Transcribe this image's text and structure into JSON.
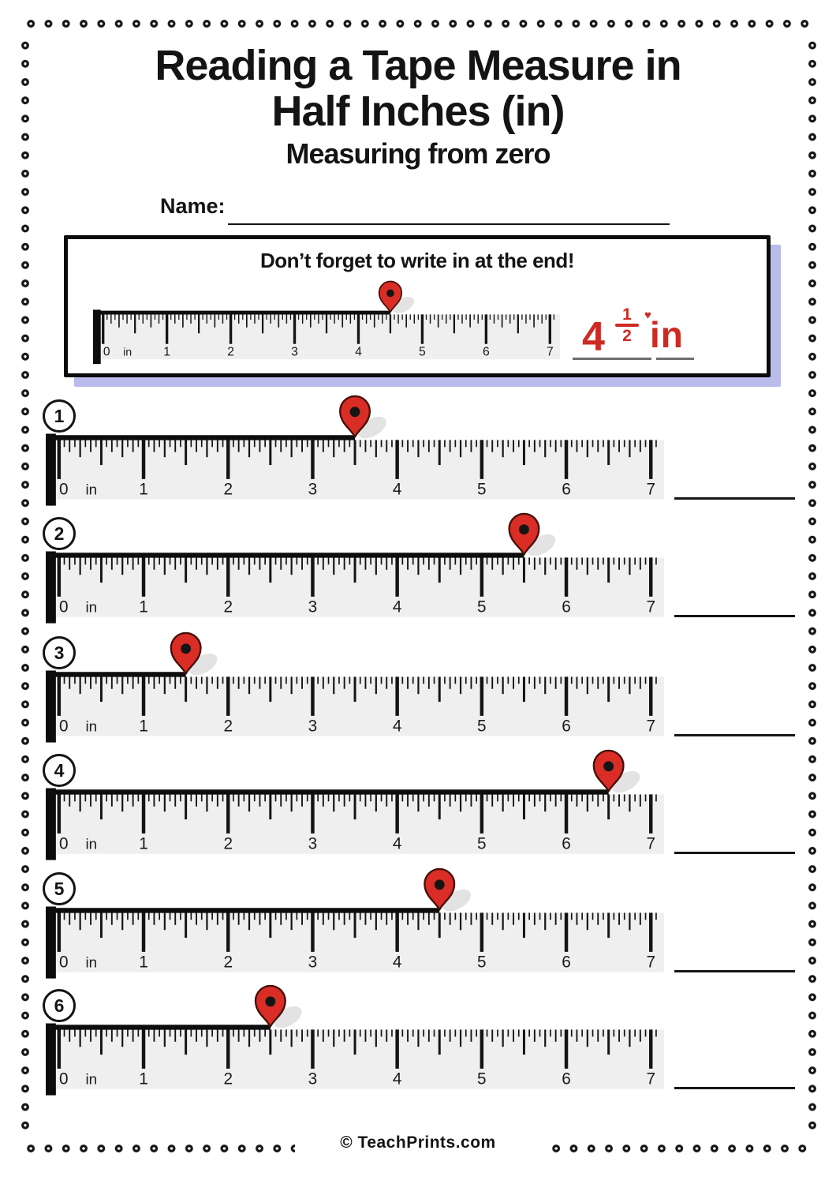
{
  "page": {
    "title_line1": "Reading a Tape Measure in",
    "title_line2": "Half Inches (in)",
    "subtitle": "Measuring from zero",
    "name_label": "Name:",
    "footer": "© TeachPrints.com"
  },
  "example": {
    "hint": "Don’t forget to write in at the end!",
    "pin_at": 4.5,
    "answer": {
      "whole": "4",
      "numerator": "1",
      "denominator": "2",
      "unit": "in"
    },
    "heart_icon": "♥"
  },
  "ruler": {
    "unit_label": "in",
    "inch_labels": [
      "0",
      "1",
      "2",
      "3",
      "4",
      "5",
      "6",
      "7"
    ],
    "min": 0,
    "max": 7,
    "subdivisions_per_inch": 16
  },
  "problems": [
    {
      "number": "1",
      "pin_at": 3.5
    },
    {
      "number": "2",
      "pin_at": 5.5
    },
    {
      "number": "3",
      "pin_at": 1.5
    },
    {
      "number": "4",
      "pin_at": 6.5
    },
    {
      "number": "5",
      "pin_at": 4.5
    },
    {
      "number": "6",
      "pin_at": 2.5
    }
  ],
  "colors": {
    "pin_red": "#da2d26",
    "pin_outline": "#471009",
    "answer_red": "#ce2a23",
    "ruler_body": "#efefef",
    "ink": "#141414",
    "shadow_lavender": "#b9bbea",
    "pin_shadow_gray": "#e3e3e3",
    "answer_underline_gray": "#6e6e6e"
  }
}
